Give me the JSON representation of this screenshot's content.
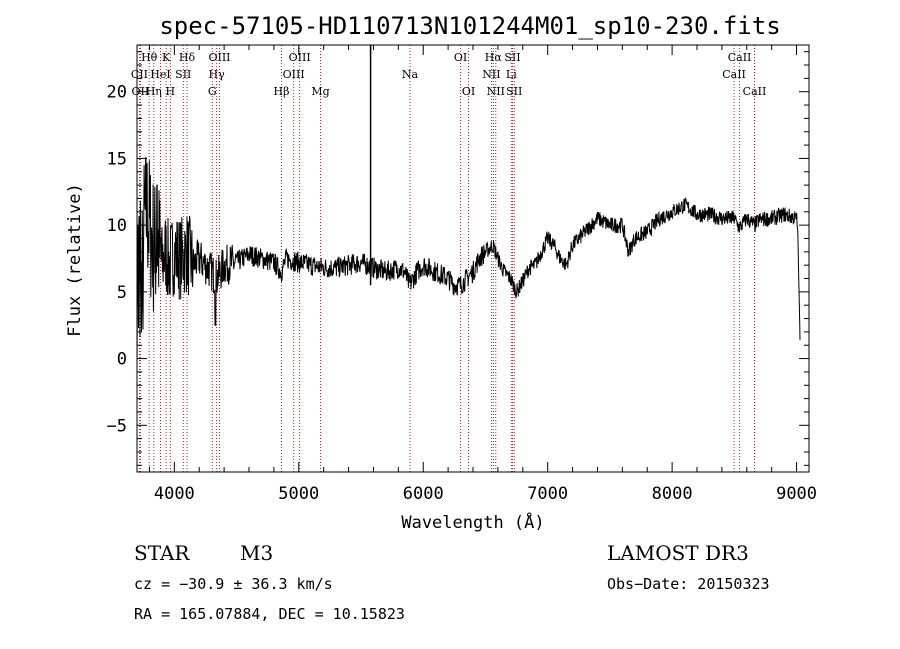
{
  "chart_data": {
    "type": "line",
    "title": "spec-57105-HD110713N101244M01_sp10-230.fits",
    "xlabel": "Wavelength (Å)",
    "ylabel": "Flux (relative)",
    "xlim": [
      3700,
      9100
    ],
    "ylim": [
      -8.5,
      23.5
    ],
    "xticks": [
      4000,
      5000,
      6000,
      7000,
      8000,
      9000
    ],
    "yticks": [
      -5,
      0,
      5,
      10,
      15,
      20
    ],
    "grid": false,
    "series": [
      {
        "x": [
          3700,
          3720,
          3740,
          3760,
          3780,
          3800,
          3820,
          3840,
          3860,
          3880,
          3900,
          3930,
          3960,
          4000,
          4050,
          4100,
          4150,
          4200,
          4250,
          4300,
          4340,
          4400,
          4500,
          4600,
          4700,
          4800,
          4860,
          4900,
          5000,
          5100,
          5200,
          5300,
          5400,
          5500,
          5600,
          5700,
          5800,
          5850,
          5890,
          5950,
          6000,
          6100,
          6200,
          6250,
          6300,
          6350,
          6400,
          6450,
          6500,
          6560,
          6600,
          6650,
          6700,
          6750,
          6800,
          6850,
          6900,
          6950,
          7000,
          7050,
          7100,
          7150,
          7200,
          7300,
          7400,
          7500,
          7600,
          7650,
          7700,
          7800,
          7900,
          8000,
          8100,
          8150,
          8200,
          8300,
          8400,
          8498,
          8542,
          8600,
          8662,
          8700,
          8800,
          8900,
          9000,
          9010,
          9030
        ],
        "y": [
          7,
          8,
          9,
          10,
          11,
          10,
          9,
          8,
          9,
          8,
          7,
          8,
          7,
          8,
          7.5,
          8,
          7,
          7.5,
          7,
          6.5,
          6,
          7,
          7.2,
          7.8,
          7.5,
          7.2,
          6.5,
          7.5,
          7.2,
          7,
          6.8,
          6.8,
          7,
          7.2,
          6.8,
          6.5,
          6.8,
          6.5,
          5.5,
          6.5,
          7,
          6.5,
          6,
          5.5,
          5.5,
          6,
          6.5,
          7.5,
          8,
          8.5,
          7.5,
          6.5,
          6,
          5,
          5.8,
          6.8,
          7,
          8,
          9,
          8.5,
          7.5,
          7,
          8.5,
          9.5,
          10.5,
          10,
          10,
          8,
          9,
          9.5,
          10.5,
          11,
          11.5,
          11.2,
          10.8,
          10.8,
          10.5,
          10.5,
          9.8,
          10.5,
          10,
          10.4,
          10.5,
          10.8,
          10.5,
          9.5,
          0.5
        ]
      }
    ],
    "marker_line_x": 5577,
    "line_markers": [
      {
        "label": "OII",
        "x": 3727,
        "row": 2
      },
      {
        "label": "CII",
        "x": 3720,
        "row": 1
      },
      {
        "label": "Hθ",
        "x": 3798,
        "row": 0
      },
      {
        "label": "Hη",
        "x": 3835,
        "row": 2
      },
      {
        "label": "HeI",
        "x": 3889,
        "row": 1
      },
      {
        "label": "K",
        "x": 3934,
        "row": 0
      },
      {
        "label": "H",
        "x": 3968,
        "row": 2
      },
      {
        "label": "SII",
        "x": 4072,
        "row": 1
      },
      {
        "label": "Hδ",
        "x": 4102,
        "row": 0
      },
      {
        "label": "OIII",
        "x": 4363,
        "row": 0
      },
      {
        "label": "Hγ",
        "x": 4340,
        "row": 1
      },
      {
        "label": "G",
        "x": 4305,
        "row": 2
      },
      {
        "label": "Hβ",
        "x": 4861,
        "row": 2
      },
      {
        "label": "OIII",
        "x": 5007,
        "row": 0
      },
      {
        "label": "OIII",
        "x": 4959,
        "row": 1
      },
      {
        "label": "Mg",
        "x": 5175,
        "row": 2
      },
      {
        "label": "Na",
        "x": 5894,
        "row": 1
      },
      {
        "label": "OI",
        "x": 6300,
        "row": 0
      },
      {
        "label": "OI",
        "x": 6364,
        "row": 2
      },
      {
        "label": "Hα",
        "x": 6563,
        "row": 0
      },
      {
        "label": "NII",
        "x": 6548,
        "row": 1
      },
      {
        "label": "NII",
        "x": 6583,
        "row": 2
      },
      {
        "label": "SII",
        "x": 6717,
        "row": 0
      },
      {
        "label": "Li",
        "x": 6708,
        "row": 1
      },
      {
        "label": "SII",
        "x": 6731,
        "row": 2
      },
      {
        "label": "CaII",
        "x": 8542,
        "row": 0
      },
      {
        "label": "CaII",
        "x": 8498,
        "row": 1
      },
      {
        "label": "CaII",
        "x": 8662,
        "row": 2
      }
    ]
  },
  "info": {
    "class_label": "STAR",
    "subclass_label": "M3",
    "survey": "LAMOST DR3",
    "velocity": "cz = −30.9 ± 36.3 km/s",
    "obs_date": "Obs−Date: 20150323",
    "coords": "RA = 165.07884, DEC =  10.15823"
  }
}
